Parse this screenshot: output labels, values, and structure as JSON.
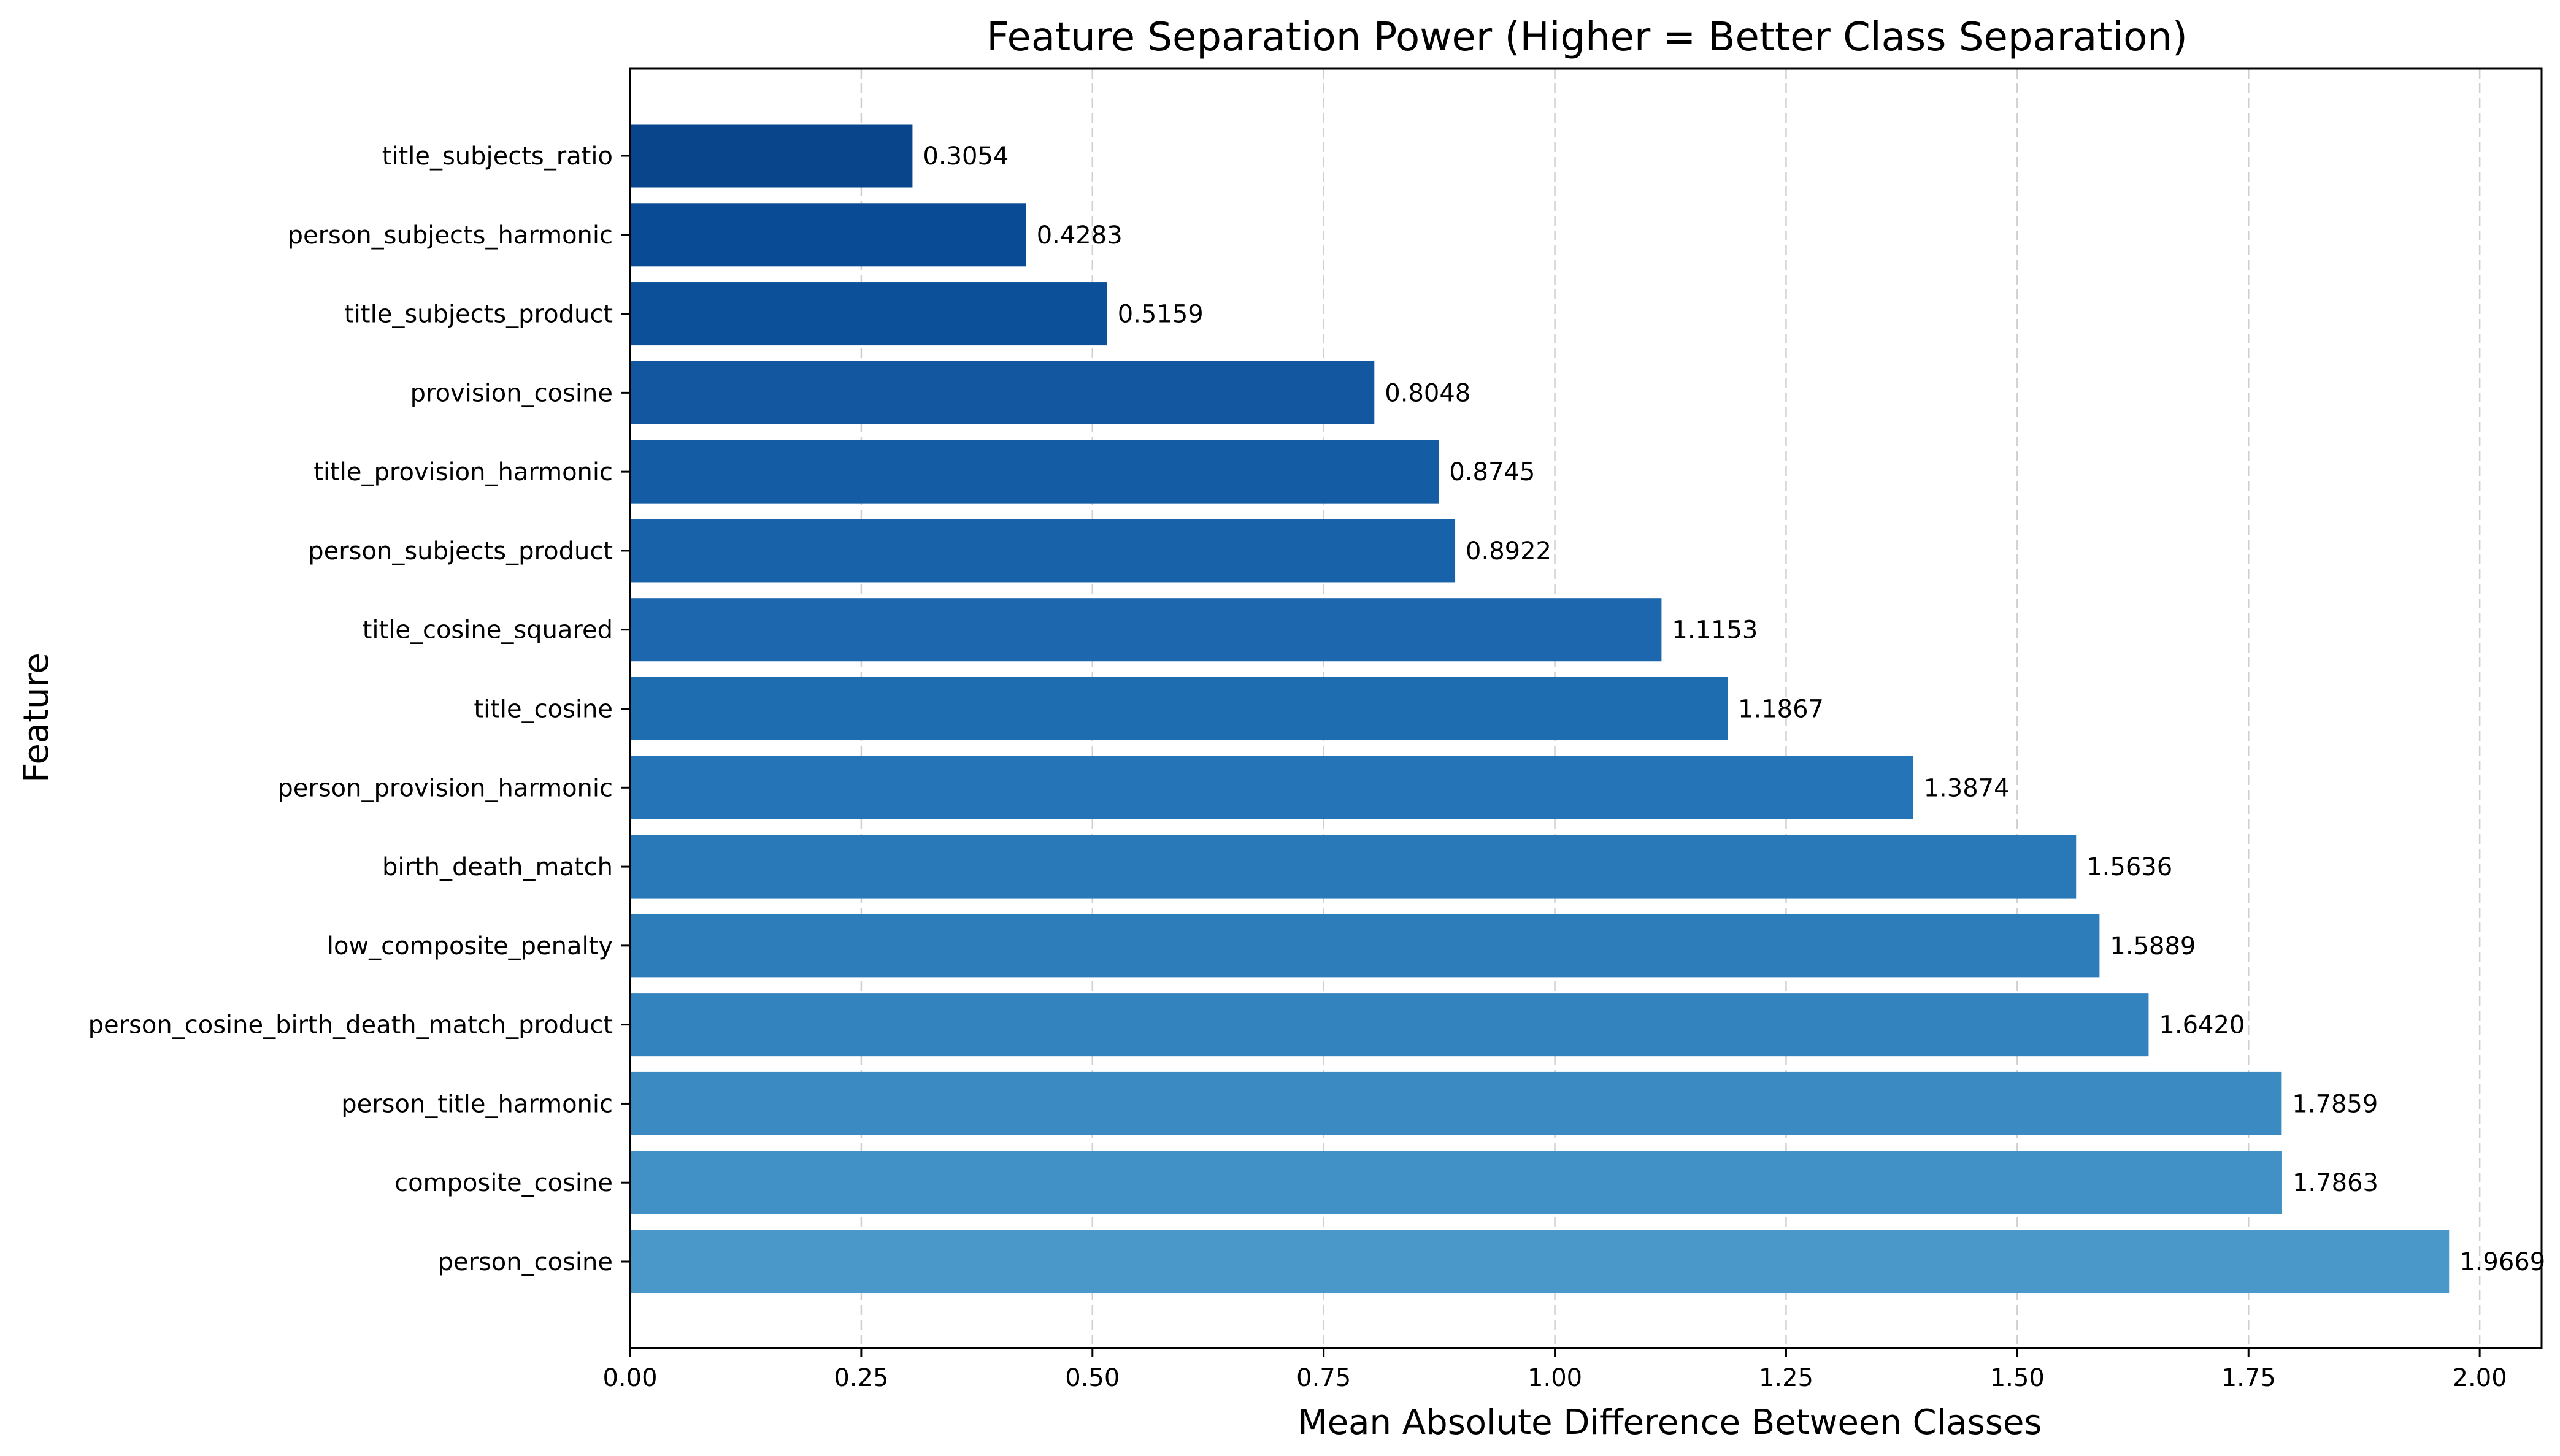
{
  "chart_data": {
    "type": "bar",
    "orientation": "horizontal",
    "title": "Feature Separation Power (Higher = Better Class Separation)",
    "xlabel": "Mean Absolute Difference Between Classes",
    "ylabel": "Feature",
    "xlim": [
      0,
      2.0669
    ],
    "xticks": [
      0.0,
      0.25,
      0.5,
      0.75,
      1.0,
      1.25,
      1.5,
      1.75,
      2.0
    ],
    "xtick_labels": [
      "0.00",
      "0.25",
      "0.50",
      "0.75",
      "1.00",
      "1.25",
      "1.50",
      "1.75",
      "2.00"
    ],
    "grid": "x-axis dashed",
    "categories": [
      "person_cosine",
      "composite_cosine",
      "person_title_harmonic",
      "person_cosine_birth_death_match_product",
      "low_composite_penalty",
      "birth_death_match",
      "person_provision_harmonic",
      "title_cosine",
      "title_cosine_squared",
      "person_subjects_product",
      "title_provision_harmonic",
      "provision_cosine",
      "title_subjects_product",
      "person_subjects_harmonic",
      "title_subjects_ratio"
    ],
    "values": [
      1.9669,
      1.7863,
      1.7859,
      1.642,
      1.5889,
      1.5636,
      1.3874,
      1.1867,
      1.1153,
      0.8922,
      0.8745,
      0.8048,
      0.5159,
      0.4283,
      0.3054
    ],
    "value_labels": [
      "1.9669",
      "1.7863",
      "1.7859",
      "1.6420",
      "1.5889",
      "1.5636",
      "1.3874",
      "1.1867",
      "1.1153",
      "0.8922",
      "0.8745",
      "0.8048",
      "0.5159",
      "0.4283",
      "0.3054"
    ],
    "bar_colors": [
      "#4a97c9",
      "#4291c6",
      "#3b8bc2",
      "#3383be",
      "#2d7dbb",
      "#2979b9",
      "#2474b7",
      "#1f6db1",
      "#1c67ad",
      "#1862a9",
      "#145ca4",
      "#1257a0",
      "#0c509a",
      "#094b94",
      "#08458a"
    ]
  }
}
